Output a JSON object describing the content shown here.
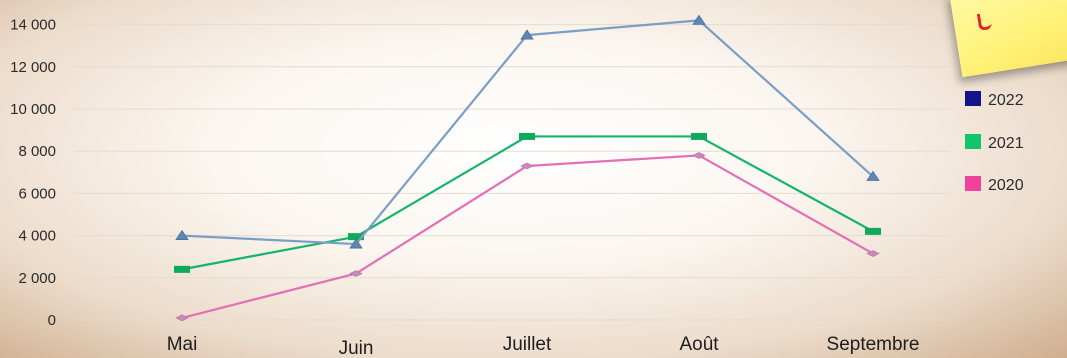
{
  "chart_data": {
    "type": "line",
    "title": "",
    "xlabel": "",
    "ylabel": "",
    "categories": [
      "Mai",
      "Juin",
      "Juillet",
      "Août",
      "Septembre"
    ],
    "y_ticks": [
      "0",
      "2 000",
      "4 000",
      "6 000",
      "8 000",
      "10 000",
      "12 000",
      "14 000"
    ],
    "ylim": [
      0,
      15000
    ],
    "grid": true,
    "legend_position": "right",
    "series": [
      {
        "name": "2022",
        "values": [
          4000,
          3600,
          13500,
          14200,
          6800
        ],
        "color": "#7b9ec6",
        "legend_color": "#14148a",
        "marker": "triangle"
      },
      {
        "name": "2021",
        "values": [
          2400,
          3950,
          8700,
          8700,
          4200
        ],
        "color": "#13b56a",
        "legend_color": "#12c46a",
        "marker": "rect"
      },
      {
        "name": "2020",
        "values": [
          100,
          2200,
          7300,
          7800,
          3150
        ],
        "color": "#e36fb4",
        "legend_color": "#f0429c",
        "marker": "diamond"
      }
    ]
  }
}
